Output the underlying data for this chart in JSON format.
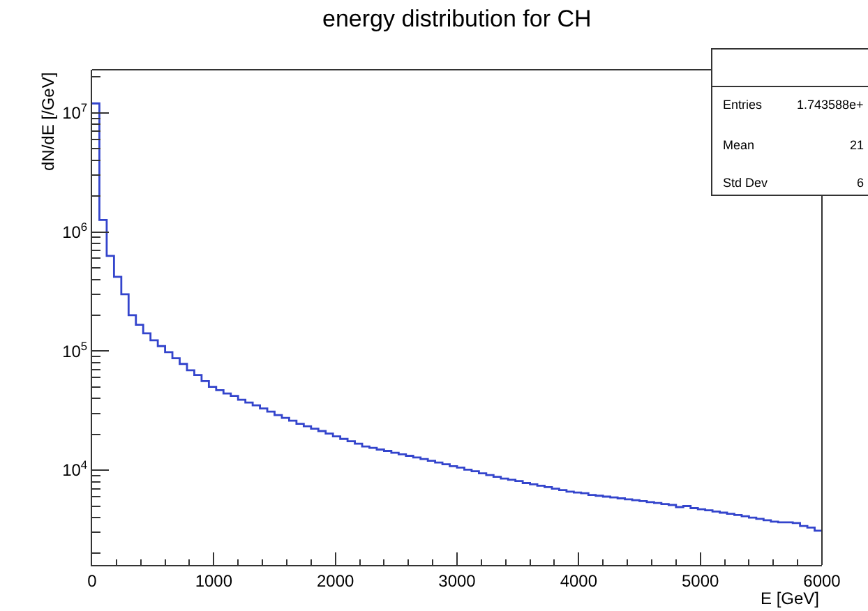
{
  "chart_data": {
    "type": "histogram",
    "title": "energy distribution for CH",
    "xlabel": "E [GeV]",
    "ylabel": "dN/dE [/GeV]",
    "bins": [
      0,
      60,
      120,
      180,
      240,
      300,
      360,
      420,
      480,
      540,
      600,
      660,
      720,
      780,
      840,
      900,
      960,
      1020,
      1080,
      1140,
      1200,
      1260,
      1320,
      1380,
      1440,
      1500,
      1560,
      1620,
      1680,
      1740,
      1800,
      1860,
      1920,
      1980,
      2040,
      2100,
      2160,
      2220,
      2280,
      2340,
      2400,
      2460,
      2520,
      2580,
      2640,
      2700,
      2760,
      2820,
      2880,
      2940,
      3000,
      3060,
      3120,
      3180,
      3240,
      3300,
      3360,
      3420,
      3480,
      3540,
      3600,
      3660,
      3720,
      3780,
      3840,
      3900,
      3960,
      4020,
      4080,
      4140,
      4200,
      4260,
      4320,
      4380,
      4440,
      4500,
      4560,
      4620,
      4680,
      4740,
      4800,
      4860,
      4920,
      4980,
      5040,
      5100,
      5160,
      5220,
      5280,
      5340,
      5400,
      5460,
      5520,
      5580,
      5640,
      5700,
      5760,
      5820,
      5880,
      5940,
      6000
    ],
    "values": [
      12000000,
      1260000,
      630000,
      420000,
      300000,
      200000,
      166000,
      141000,
      123000,
      110000,
      98000,
      87000,
      78000,
      69000,
      63000,
      56000,
      50000,
      47000,
      44000,
      42000,
      39000,
      37000,
      35000,
      33000,
      31000,
      29000,
      27500,
      26000,
      24500,
      23400,
      22300,
      21300,
      20300,
      19200,
      18300,
      17500,
      16700,
      15800,
      15400,
      14900,
      14500,
      14000,
      13600,
      13200,
      12800,
      12400,
      12000,
      11600,
      11200,
      10800,
      10500,
      10100,
      9800,
      9400,
      9100,
      8800,
      8500,
      8300,
      8100,
      7800,
      7600,
      7400,
      7200,
      7000,
      6800,
      6600,
      6500,
      6400,
      6200,
      6100,
      6000,
      5900,
      5800,
      5700,
      5600,
      5500,
      5400,
      5300,
      5200,
      5100,
      4900,
      5000,
      4800,
      4700,
      4600,
      4500,
      4400,
      4300,
      4200,
      4100,
      4000,
      3900,
      3800,
      3700,
      3650,
      3650,
      3600,
      3400,
      3300,
      3100
    ],
    "color": "#3344cc",
    "log": "y",
    "xlim": [
      0,
      6000
    ],
    "ylim": [
      1600,
      23000000
    ],
    "xticks": [
      0,
      1000,
      2000,
      3000,
      4000,
      5000,
      6000
    ],
    "yticks": [
      {
        "value": 10000,
        "label": "10$^{4}$"
      },
      {
        "value": 100000,
        "label": "10$^{5}$"
      },
      {
        "value": 1000000,
        "label": "10$^{6}$"
      },
      {
        "value": 10000000,
        "label": "10$^{7}$"
      }
    ],
    "annotations": [
      "Entries",
      "1.743588e+",
      "Mean",
      "21",
      "Std Dev",
      "6"
    ]
  }
}
